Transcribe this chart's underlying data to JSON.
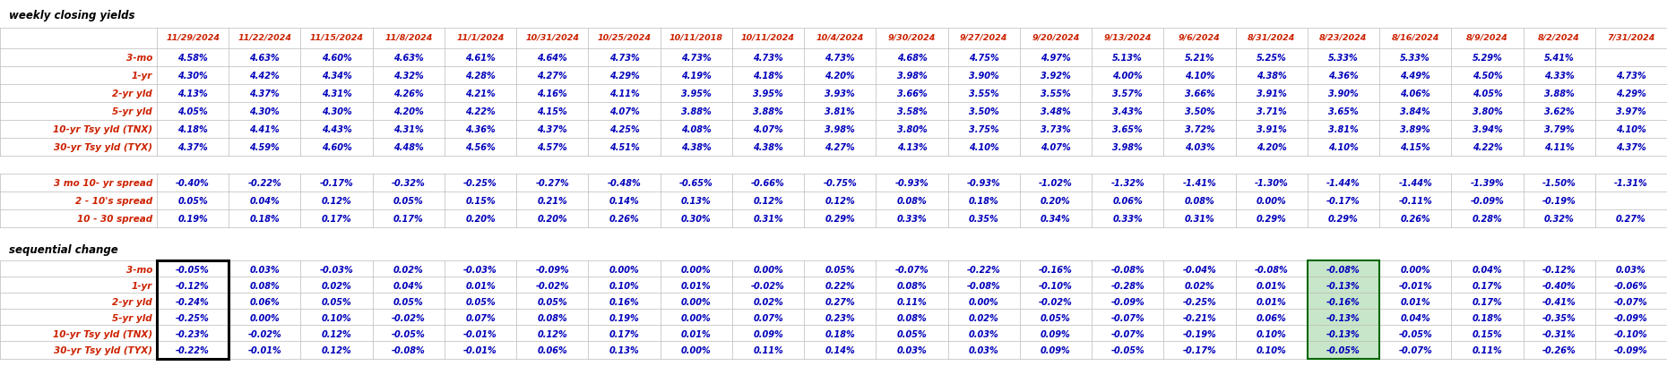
{
  "title": "weekly closing yields",
  "section2_title": "sequential change",
  "columns": [
    "11/29/2024",
    "11/22/2024",
    "11/15/2024",
    "11/8/2024",
    "11/1/2024",
    "10/31/2024",
    "10/25/2024",
    "10/11/2018",
    "10/11/2024",
    "10/4/2024",
    "9/30/2024",
    "9/27/2024",
    "9/20/2024",
    "9/13/2024",
    "9/6/2024",
    "8/31/2024",
    "8/23/2024",
    "8/16/2024",
    "8/9/2024",
    "8/2/2024",
    "7/31/2024"
  ],
  "row_labels_s1": [
    "3-mo",
    "1-yr",
    "2-yr yld",
    "5-yr yld",
    "10-yr Tsy yld (TNX)",
    "30-yr Tsy yld (TYX)"
  ],
  "row_labels_s2": [
    "3 mo 10- yr spread",
    "2 - 10's spread",
    "10 - 30 spread"
  ],
  "row_labels_s3": [
    "3-mo",
    "1-yr",
    "2-yr yld",
    "5-yr yld",
    "10-yr Tsy yld (TNX)",
    "30-yr Tsy yld (TYX)"
  ],
  "data_s1": [
    [
      "4.58%",
      "4.63%",
      "4.60%",
      "4.63%",
      "4.61%",
      "4.64%",
      "4.73%",
      "4.73%",
      "4.73%",
      "4.73%",
      "4.68%",
      "4.75%",
      "4.97%",
      "5.13%",
      "5.21%",
      "5.25%",
      "5.33%",
      "5.33%",
      "5.29%",
      "5.41%",
      ""
    ],
    [
      "4.30%",
      "4.42%",
      "4.34%",
      "4.32%",
      "4.28%",
      "4.27%",
      "4.29%",
      "4.19%",
      "4.18%",
      "4.20%",
      "3.98%",
      "3.90%",
      "3.92%",
      "4.00%",
      "4.10%",
      "4.38%",
      "4.36%",
      "4.49%",
      "4.50%",
      "4.33%",
      "4.73%"
    ],
    [
      "4.13%",
      "4.37%",
      "4.31%",
      "4.26%",
      "4.21%",
      "4.16%",
      "4.11%",
      "3.95%",
      "3.95%",
      "3.93%",
      "3.66%",
      "3.55%",
      "3.55%",
      "3.57%",
      "3.66%",
      "3.91%",
      "3.90%",
      "4.06%",
      "4.05%",
      "3.88%",
      "4.29%"
    ],
    [
      "4.05%",
      "4.30%",
      "4.30%",
      "4.20%",
      "4.22%",
      "4.15%",
      "4.07%",
      "3.88%",
      "3.88%",
      "3.81%",
      "3.58%",
      "3.50%",
      "3.48%",
      "3.43%",
      "3.50%",
      "3.71%",
      "3.65%",
      "3.84%",
      "3.80%",
      "3.62%",
      "3.97%"
    ],
    [
      "4.18%",
      "4.41%",
      "4.43%",
      "4.31%",
      "4.36%",
      "4.37%",
      "4.25%",
      "4.08%",
      "4.07%",
      "3.98%",
      "3.80%",
      "3.75%",
      "3.73%",
      "3.65%",
      "3.72%",
      "3.91%",
      "3.81%",
      "3.89%",
      "3.94%",
      "3.79%",
      "4.10%"
    ],
    [
      "4.37%",
      "4.59%",
      "4.60%",
      "4.48%",
      "4.56%",
      "4.57%",
      "4.51%",
      "4.38%",
      "4.38%",
      "4.27%",
      "4.13%",
      "4.10%",
      "4.07%",
      "3.98%",
      "4.03%",
      "4.20%",
      "4.10%",
      "4.15%",
      "4.22%",
      "4.11%",
      "4.37%"
    ]
  ],
  "data_s2": [
    [
      "-0.40%",
      "-0.22%",
      "-0.17%",
      "-0.32%",
      "-0.25%",
      "-0.27%",
      "-0.48%",
      "-0.65%",
      "-0.66%",
      "-0.75%",
      "-0.93%",
      "-0.93%",
      "-1.02%",
      "-1.32%",
      "-1.41%",
      "-1.30%",
      "-1.44%",
      "-1.44%",
      "-1.39%",
      "-1.50%",
      "-1.31%"
    ],
    [
      "0.05%",
      "0.04%",
      "0.12%",
      "0.05%",
      "0.15%",
      "0.21%",
      "0.14%",
      "0.13%",
      "0.12%",
      "0.12%",
      "0.08%",
      "0.18%",
      "0.20%",
      "0.06%",
      "0.08%",
      "0.00%",
      "-0.17%",
      "-0.11%",
      "-0.09%",
      "-0.19%",
      ""
    ],
    [
      "0.19%",
      "0.18%",
      "0.17%",
      "0.17%",
      "0.20%",
      "0.20%",
      "0.26%",
      "0.30%",
      "0.31%",
      "0.29%",
      "0.33%",
      "0.35%",
      "0.34%",
      "0.33%",
      "0.31%",
      "0.29%",
      "0.29%",
      "0.26%",
      "0.28%",
      "0.32%",
      "0.27%"
    ]
  ],
  "data_s3": [
    [
      "-0.05%",
      "0.03%",
      "-0.03%",
      "0.02%",
      "-0.03%",
      "-0.09%",
      "0.00%",
      "0.00%",
      "0.00%",
      "0.05%",
      "-0.07%",
      "-0.22%",
      "-0.16%",
      "-0.08%",
      "-0.04%",
      "-0.08%",
      "-0.08%",
      "0.00%",
      "0.04%",
      "-0.12%",
      "0.03%"
    ],
    [
      "-0.12%",
      "0.08%",
      "0.02%",
      "0.04%",
      "0.01%",
      "-0.02%",
      "0.10%",
      "0.01%",
      "-0.02%",
      "0.22%",
      "0.08%",
      "-0.08%",
      "-0.10%",
      "-0.28%",
      "0.02%",
      "0.01%",
      "-0.13%",
      "-0.01%",
      "0.17%",
      "-0.40%",
      "-0.06%"
    ],
    [
      "-0.24%",
      "0.06%",
      "0.05%",
      "0.05%",
      "0.05%",
      "0.05%",
      "0.16%",
      "0.00%",
      "0.02%",
      "0.27%",
      "0.11%",
      "0.00%",
      "-0.02%",
      "-0.09%",
      "-0.25%",
      "0.01%",
      "-0.16%",
      "0.01%",
      "0.17%",
      "-0.41%",
      "-0.07%"
    ],
    [
      "-0.25%",
      "0.00%",
      "0.10%",
      "-0.02%",
      "0.07%",
      "0.08%",
      "0.19%",
      "0.00%",
      "0.07%",
      "0.23%",
      "0.08%",
      "0.02%",
      "0.05%",
      "-0.07%",
      "-0.21%",
      "0.06%",
      "-0.13%",
      "0.04%",
      "0.18%",
      "-0.35%",
      "-0.09%"
    ],
    [
      "-0.23%",
      "-0.02%",
      "0.12%",
      "-0.05%",
      "-0.01%",
      "0.12%",
      "0.17%",
      "0.01%",
      "0.09%",
      "0.18%",
      "0.05%",
      "0.03%",
      "0.09%",
      "-0.07%",
      "-0.19%",
      "0.10%",
      "-0.13%",
      "-0.05%",
      "0.15%",
      "-0.31%",
      "-0.10%"
    ],
    [
      "-0.22%",
      "-0.01%",
      "0.12%",
      "-0.08%",
      "-0.01%",
      "0.06%",
      "0.13%",
      "0.00%",
      "0.11%",
      "0.14%",
      "0.03%",
      "0.03%",
      "0.09%",
      "-0.05%",
      "-0.17%",
      "0.10%",
      "-0.05%",
      "-0.07%",
      "0.11%",
      "-0.26%",
      "-0.09%"
    ]
  ],
  "bg_color": "#ffffff",
  "header_color": "#cc2200",
  "row_label_color": "#cc2200",
  "data_color": "#0000bb",
  "section_title_color": "#000000",
  "grid_color": "#bbbbbb",
  "highlight_box_color": "#006600",
  "highlight_fill_color": "#c8e6c9"
}
